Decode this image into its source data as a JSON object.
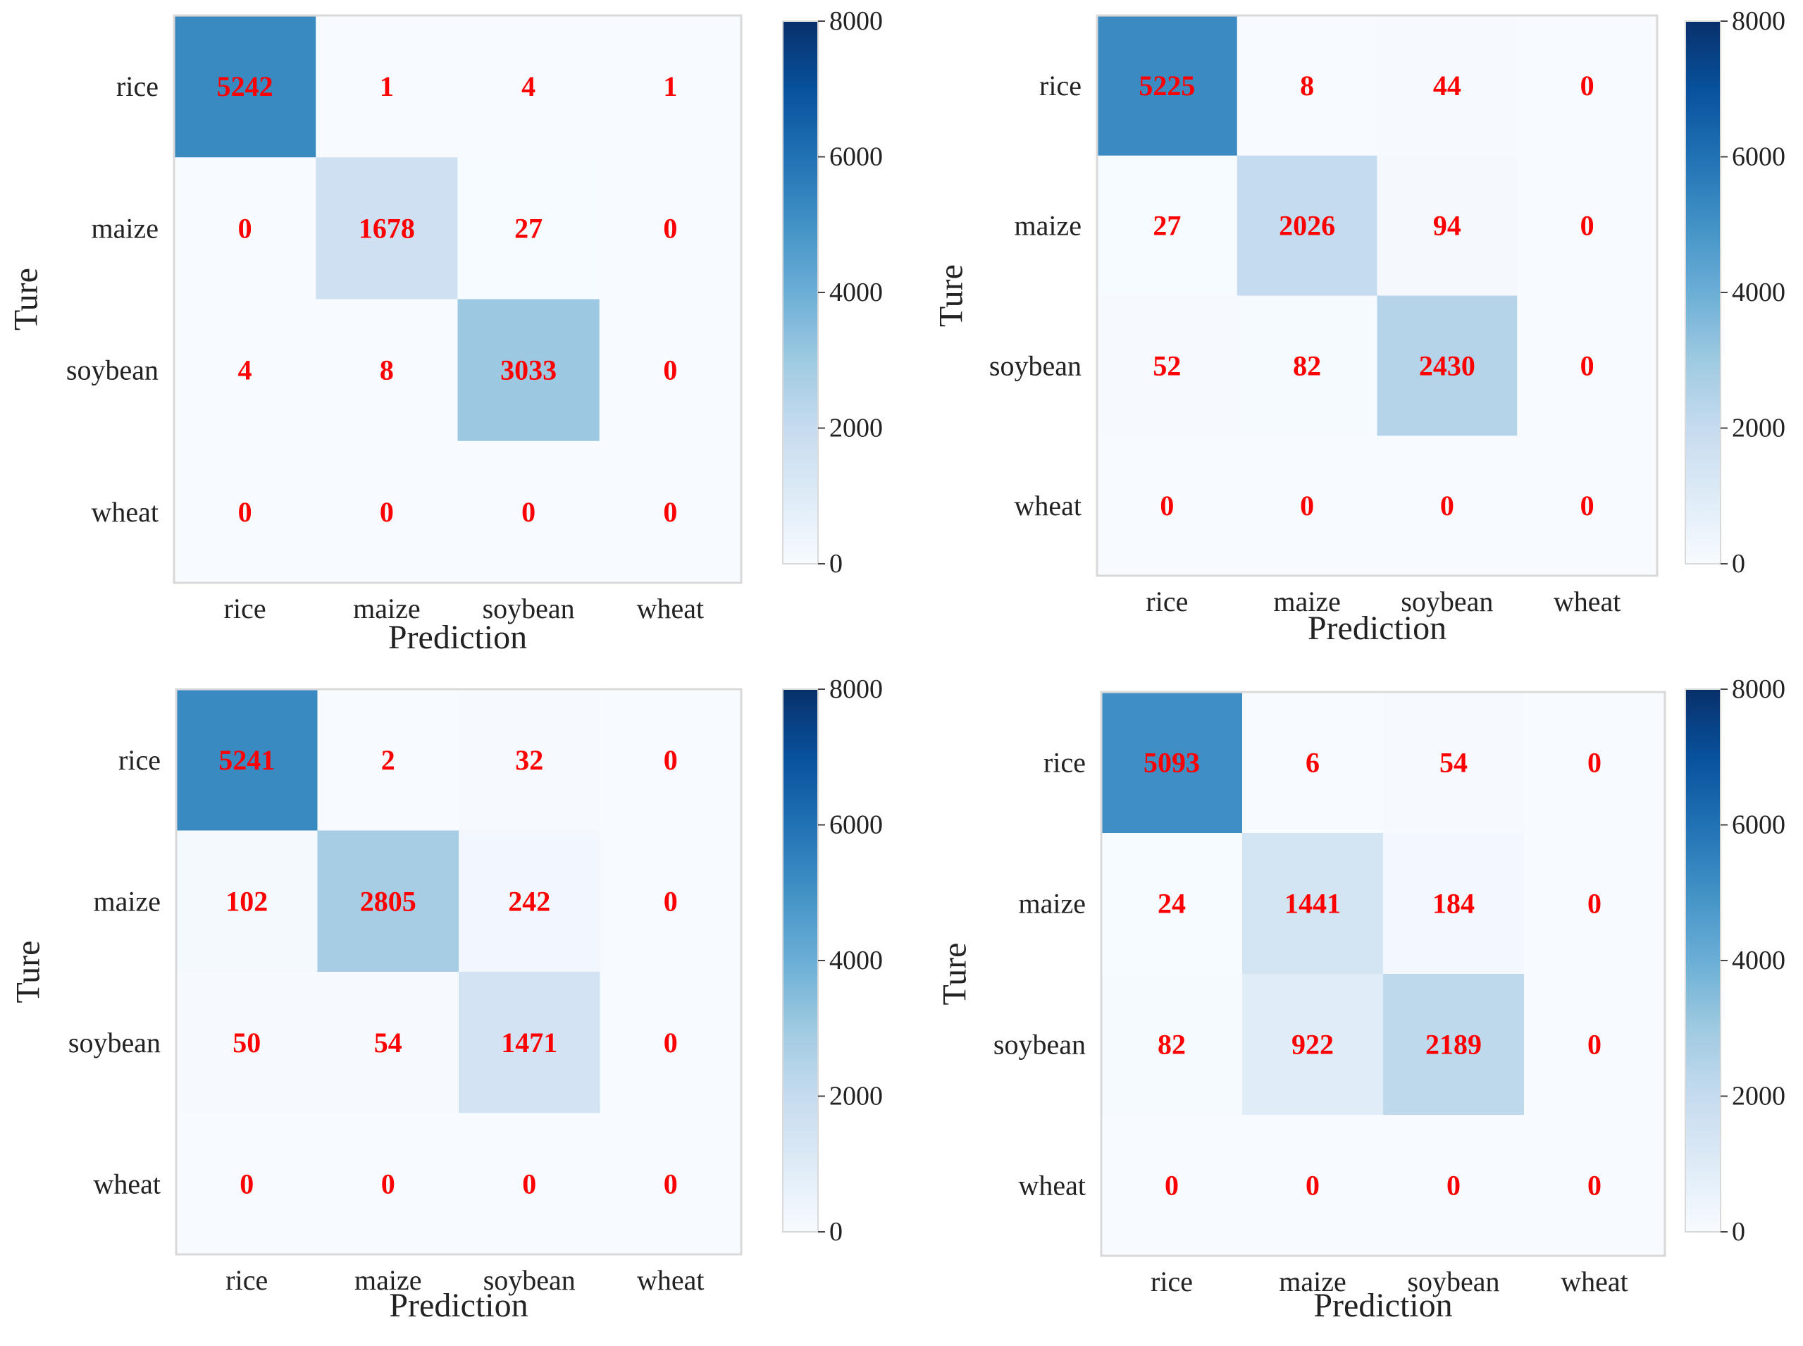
{
  "colors": {
    "cell_text": "#ff0000",
    "frame": "#d9d9d9",
    "label_text": "#222222",
    "cmap": [
      "#f7fbff",
      "#deebf7",
      "#c6dbef",
      "#9ecae1",
      "#6baed6",
      "#4292c6",
      "#2171b5",
      "#08519c",
      "#08306b"
    ]
  },
  "chart_data": [
    {
      "type": "heatmap",
      "position": "top-left",
      "xlabel": "Prediction",
      "ylabel": "Ture",
      "x_categories": [
        "rice",
        "maize",
        "soybean",
        "wheat"
      ],
      "y_categories": [
        "rice",
        "maize",
        "soybean",
        "wheat"
      ],
      "values": [
        [
          5242,
          1,
          4,
          1
        ],
        [
          0,
          1678,
          27,
          0
        ],
        [
          4,
          8,
          3033,
          0
        ],
        [
          0,
          0,
          0,
          0
        ]
      ],
      "colorbar": {
        "min": 0,
        "max": 8000,
        "ticks": [
          "0",
          "2000",
          "4000",
          "6000",
          "8000"
        ]
      }
    },
    {
      "type": "heatmap",
      "position": "top-right",
      "xlabel": "Prediction",
      "ylabel": "Ture",
      "x_categories": [
        "rice",
        "maize",
        "soybean",
        "wheat"
      ],
      "y_categories": [
        "rice",
        "maize",
        "soybean",
        "wheat"
      ],
      "values": [
        [
          5225,
          8,
          44,
          0
        ],
        [
          27,
          2026,
          94,
          0
        ],
        [
          52,
          82,
          2430,
          0
        ],
        [
          0,
          0,
          0,
          0
        ]
      ],
      "colorbar": {
        "min": 0,
        "max": 8000,
        "ticks": [
          "0",
          "2000",
          "4000",
          "6000",
          "8000"
        ]
      }
    },
    {
      "type": "heatmap",
      "position": "bottom-left",
      "xlabel": "Prediction",
      "ylabel": "Ture",
      "x_categories": [
        "rice",
        "maize",
        "soybean",
        "wheat"
      ],
      "y_categories": [
        "rice",
        "maize",
        "soybean",
        "wheat"
      ],
      "values": [
        [
          5241,
          2,
          32,
          0
        ],
        [
          102,
          2805,
          242,
          0
        ],
        [
          50,
          54,
          1471,
          0
        ],
        [
          0,
          0,
          0,
          0
        ]
      ],
      "colorbar": {
        "min": 0,
        "max": 8000,
        "ticks": [
          "0",
          "2000",
          "4000",
          "6000",
          "8000"
        ]
      }
    },
    {
      "type": "heatmap",
      "position": "bottom-right",
      "xlabel": "Prediction",
      "ylabel": "Ture",
      "x_categories": [
        "rice",
        "maize",
        "soybean",
        "wheat"
      ],
      "y_categories": [
        "rice",
        "maize",
        "soybean",
        "wheat"
      ],
      "values": [
        [
          5093,
          6,
          54,
          0
        ],
        [
          24,
          1441,
          184,
          0
        ],
        [
          82,
          922,
          2189,
          0
        ],
        [
          0,
          0,
          0,
          0
        ]
      ],
      "colorbar": {
        "min": 0,
        "max": 8000,
        "ticks": [
          "0",
          "2000",
          "4000",
          "6000",
          "8000"
        ]
      }
    }
  ]
}
